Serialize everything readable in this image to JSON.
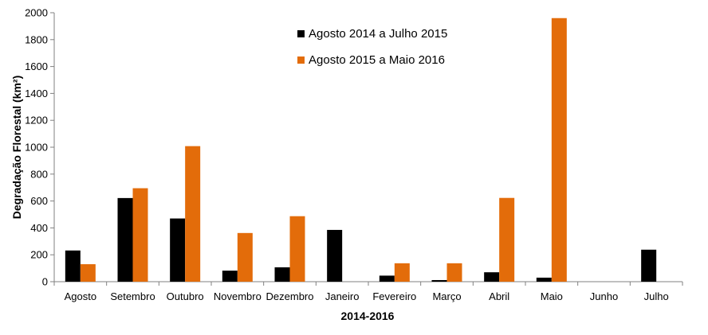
{
  "chart_data": {
    "type": "bar",
    "title": "",
    "xlabel": "2014-2016",
    "ylabel": "Degradação Florestal (km²)",
    "ylim": [
      0,
      2000
    ],
    "yticks": [
      0,
      200,
      400,
      600,
      800,
      1000,
      1200,
      1400,
      1600,
      1800,
      2000
    ],
    "grid": false,
    "legend_position": "top-center",
    "categories": [
      "Agosto",
      "Setembro",
      "Outubro",
      "Novembro",
      "Dezembro",
      "Janeiro",
      "Fevereiro",
      "Março",
      "Abril",
      "Maio",
      "Junho",
      "Julho"
    ],
    "series": [
      {
        "name": "Agosto 2014 a Julho 2015",
        "color": "#000000",
        "values": [
          232,
          622,
          470,
          82,
          107,
          385,
          45,
          12,
          70,
          30,
          0,
          238
        ]
      },
      {
        "name": "Agosto 2015 a Maio 2016",
        "color": "#e36c0a",
        "values": [
          130,
          695,
          1008,
          362,
          487,
          null,
          137,
          137,
          623,
          1960,
          null,
          null
        ]
      }
    ]
  }
}
